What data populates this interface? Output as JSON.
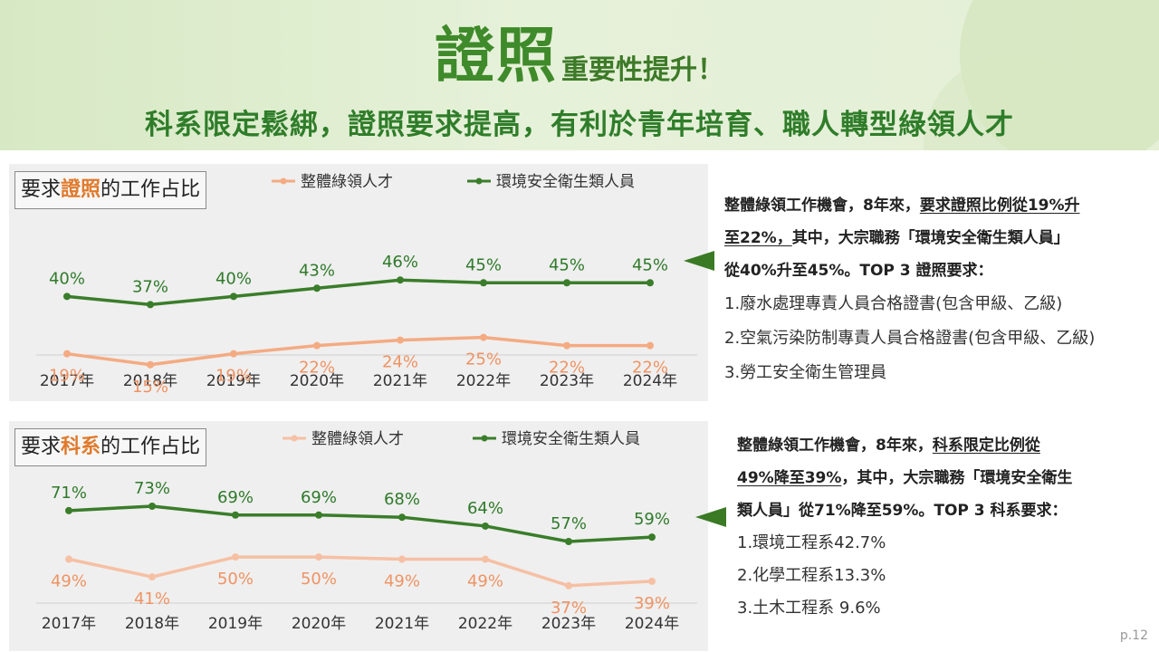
{
  "header": {
    "title_big": "證照",
    "title_small": "重要性提升！",
    "subtitle": "科系限定鬆綁，證照要求提高，有利於青年培育、職人轉型綠領人才"
  },
  "colors": {
    "green_series": "#3a7d2a",
    "orange_series": "#f4ab82",
    "orange_series_2": "#f6c0a4",
    "green_label": "#2f7a2a",
    "orange_label": "#ef9363",
    "highlight": "#e07a2c"
  },
  "chart1": {
    "title_prefix": "要求",
    "title_highlight": "證照",
    "title_suffix": "的工作占比"
  },
  "chart2": {
    "title_prefix": "要求",
    "title_highlight": "科系",
    "title_suffix": "的工作占比"
  },
  "chart_data": [
    {
      "type": "line",
      "title": "要求證照的工作占比",
      "x": [
        "2017年",
        "2018年",
        "2019年",
        "2020年",
        "2021年",
        "2022年",
        "2023年",
        "2024年"
      ],
      "ylim": [
        0,
        60
      ],
      "legend": "top-center",
      "series": [
        {
          "name": "整體綠領人才",
          "values": [
            19,
            15,
            19,
            22,
            24,
            25,
            22,
            22
          ],
          "labels": [
            "19%",
            "15%",
            "19%",
            "22%",
            "24%",
            "25%",
            "22%",
            "22%"
          ]
        },
        {
          "name": "環境安全衛生類人員",
          "values": [
            40,
            37,
            40,
            43,
            46,
            45,
            45,
            45
          ],
          "labels": [
            "40%",
            "37%",
            "40%",
            "43%",
            "46%",
            "45%",
            "45%",
            "45%"
          ]
        }
      ]
    },
    {
      "type": "line",
      "title": "要求科系的工作占比",
      "x": [
        "2017年",
        "2018年",
        "2019年",
        "2020年",
        "2021年",
        "2022年",
        "2023年",
        "2024年"
      ],
      "ylim": [
        0,
        100
      ],
      "legend": "top-center",
      "series": [
        {
          "name": "整體綠領人才",
          "values": [
            49,
            41,
            50,
            50,
            49,
            49,
            37,
            39
          ],
          "labels": [
            "49%",
            "41%",
            "50%",
            "50%",
            "49%",
            "49%",
            "37%",
            "39%"
          ]
        },
        {
          "name": "環境安全衛生類人員",
          "values": [
            71,
            73,
            69,
            69,
            68,
            64,
            57,
            59
          ],
          "labels": [
            "71%",
            "73%",
            "69%",
            "69%",
            "68%",
            "64%",
            "57%",
            "59%"
          ]
        }
      ]
    }
  ],
  "desc1": {
    "l1_a": "整體綠領工作機會，8年來，",
    "l1_b": "要求證照比例從19%升",
    "l2_a": "至22%，",
    "l2_b": "其中，大宗職務「環境安全衛生類人員」",
    "l3": "從40%升至45%。TOP 3 證照要求：",
    "items": [
      "1.廢水處理專責人員合格證書(包含甲級、乙級)",
      "2.空氣污染防制專責人員合格證書(包含甲級、乙級)",
      "3.勞工安全衛生管理員"
    ]
  },
  "desc2": {
    "l1_a": "整體綠領工作機會，8年來，",
    "l1_b": "科系限定比例從",
    "l2_a": "49%降至39%",
    "l2_b": "，其中，大宗職務「環境安全衛生",
    "l3": "類人員」從71%降至59%。TOP 3 科系要求：",
    "items": [
      "1.環境工程系42.7%",
      "2.化學工程系13.3%",
      "3.土木工程系  9.6%"
    ]
  },
  "page_number": "p.12"
}
